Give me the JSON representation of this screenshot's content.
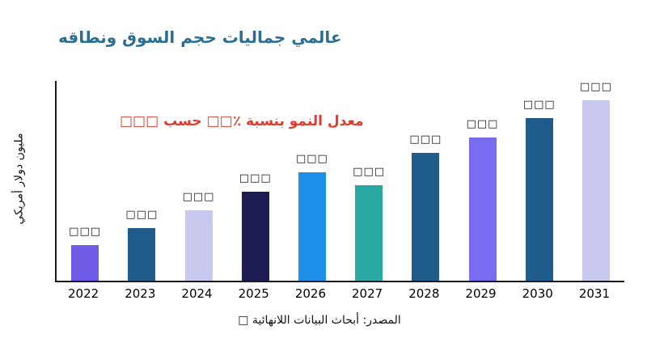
{
  "title": "عالمي جماليات حجم السوق ونطاقه",
  "annotation": {
    "text": "معدل النمو بنسبة ٪□□ حسب □□□",
    "color": "#e23b2e"
  },
  "source_note": "المصدر: أبحاث البيانات اللانهائية □",
  "colors": {
    "title": "#2a6f92",
    "axis": "#1a1a1a",
    "background": "#ffffff"
  },
  "chart_data": {
    "type": "bar",
    "title": "عالمي جماليات حجم السوق ونطاقه",
    "xlabel": "",
    "ylabel": "مليون دولار أمريكي",
    "categories": [
      "2022",
      "2023",
      "2024",
      "2025",
      "2026",
      "2027",
      "2028",
      "2029",
      "2030",
      "2031"
    ],
    "values": [
      45,
      66,
      88,
      111,
      136,
      119,
      160,
      179,
      203,
      227
    ],
    "values_note": "relative magnitudes estimated from bar heights; numeric data labels render as tofu boxes in source image",
    "value_labels": [
      "□□□",
      "□□□",
      "□□□",
      "□□□",
      "□□□",
      "□□□",
      "□□□",
      "□□□",
      "□□□",
      "□□□"
    ],
    "bar_colors": [
      "#6E5CE6",
      "#1F5C8B",
      "#C9C9F0",
      "#1C1C52",
      "#1E8FE8",
      "#2BA8A4",
      "#1F5C8B",
      "#7A6CF0",
      "#1F5C8B",
      "#C9C9F0"
    ],
    "ylim": [
      0,
      250
    ],
    "grid": false,
    "legend": false,
    "annotation": "معدل النمو بنسبة ٪□□ حسب □□□"
  }
}
